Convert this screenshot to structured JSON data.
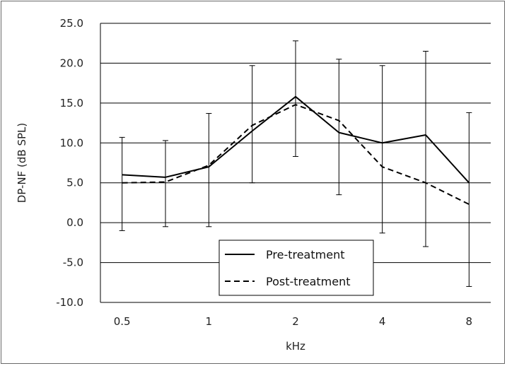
{
  "chart_data": {
    "type": "line",
    "title": "",
    "xlabel": "kHz",
    "ylabel": "DP-NF (dB SPL)",
    "ylim": [
      -10,
      25
    ],
    "y_ticks": [
      "25.0",
      "20.0",
      "15.0",
      "10.0",
      "5.0",
      "0.0",
      "-5.0",
      "-10.0"
    ],
    "y_tick_values": [
      25,
      20,
      15,
      10,
      5,
      0,
      -5,
      -10
    ],
    "x_tick_labels": [
      "0.5",
      "",
      "1",
      "",
      "2",
      "",
      "4",
      "",
      "8"
    ],
    "grid": "horizontal",
    "legend_position": "bottom-center",
    "series": [
      {
        "name": "Pre-treatment",
        "style": "solid",
        "color": "#000000",
        "values": [
          6.0,
          5.7,
          7.0,
          11.5,
          15.8,
          11.3,
          10.0,
          11.0,
          5.0
        ],
        "err_upper": [
          10.7,
          10.3,
          13.7,
          19.7,
          22.8,
          20.5,
          19.7,
          21.5,
          13.8
        ],
        "err_lower": [
          -1.0,
          -0.5,
          -0.5,
          5.0,
          8.3,
          3.5,
          -1.3,
          -3.0,
          -8.0
        ]
      },
      {
        "name": "Post-treatment",
        "style": "dashed",
        "color": "#000000",
        "values": [
          5.0,
          5.1,
          7.2,
          12.2,
          14.8,
          12.8,
          7.0,
          5.0,
          2.3
        ]
      }
    ]
  }
}
